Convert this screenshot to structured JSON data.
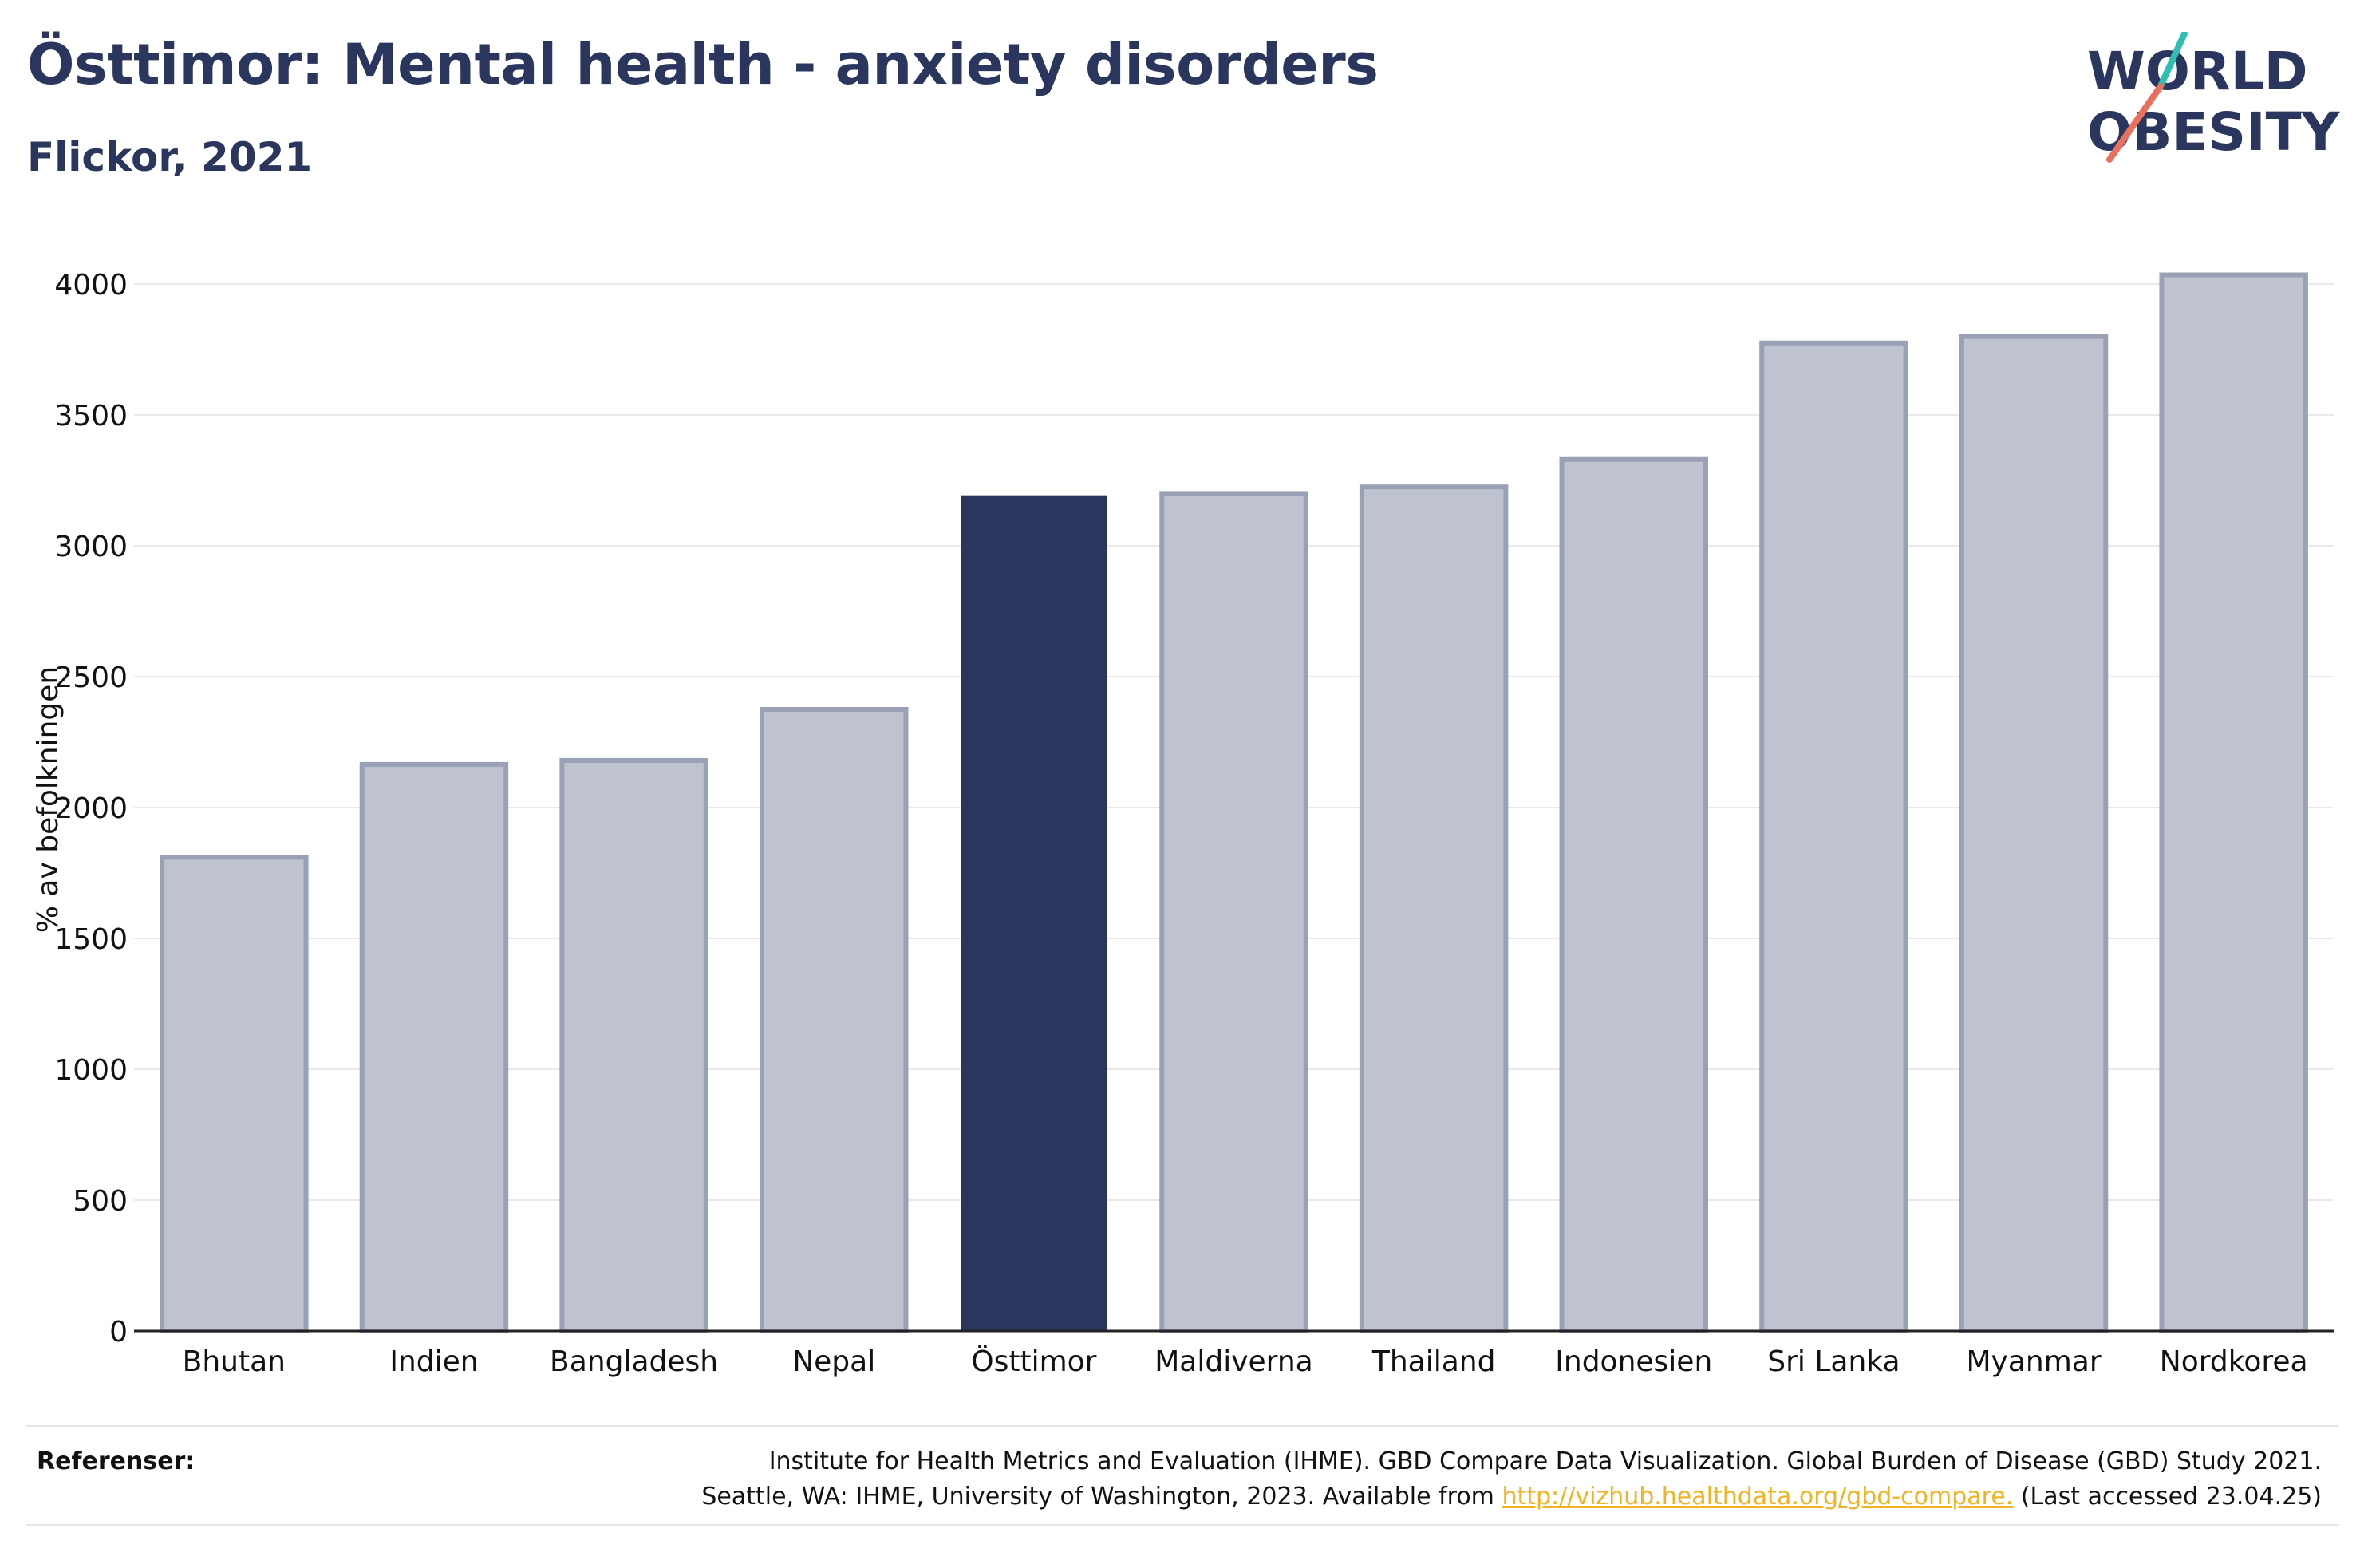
{
  "header": {
    "title": "Östtimor: Mental health - anxiety disorders",
    "subtitle": "Flickor, 2021"
  },
  "logo": {
    "line1": "WORLD",
    "line2": "OBESITY"
  },
  "chart_data": {
    "type": "bar",
    "categories": [
      "Bhutan",
      "Indien",
      "Bangladesh",
      "Nepal",
      "Östtimor",
      "Maldiverna",
      "Thailand",
      "Indonesien",
      "Sri Lanka",
      "Myanmar",
      "Nordkorea"
    ],
    "values": [
      1810,
      2165,
      2180,
      2375,
      3190,
      3200,
      3225,
      3330,
      3775,
      3800,
      4035
    ],
    "highlight": "Östtimor",
    "ylabel": "% av befolkningen",
    "xlabel": "",
    "ylim": [
      0,
      4000
    ],
    "yticks": [
      0,
      500,
      1000,
      1500,
      2000,
      2500,
      3000,
      3500,
      4000
    ],
    "grid": true,
    "colors": {
      "bar": "#bfc3cf",
      "bar_edge": "#9aa0b6",
      "highlight": "#2b365e"
    }
  },
  "footer": {
    "ref_label": "Referenser:",
    "ref_line1": "Institute for Health Metrics and Evaluation (IHME). GBD Compare Data Visualization. Global Burden of Disease (GBD) Study 2021.",
    "ref_line2_pre": "Seattle, WA: IHME, University of Washington, 2023. Available from ",
    "ref_link": "http://vizhub.healthdata.org/gbd-compare.",
    "ref_line2_post": " (Last accessed 23.04.25)"
  }
}
